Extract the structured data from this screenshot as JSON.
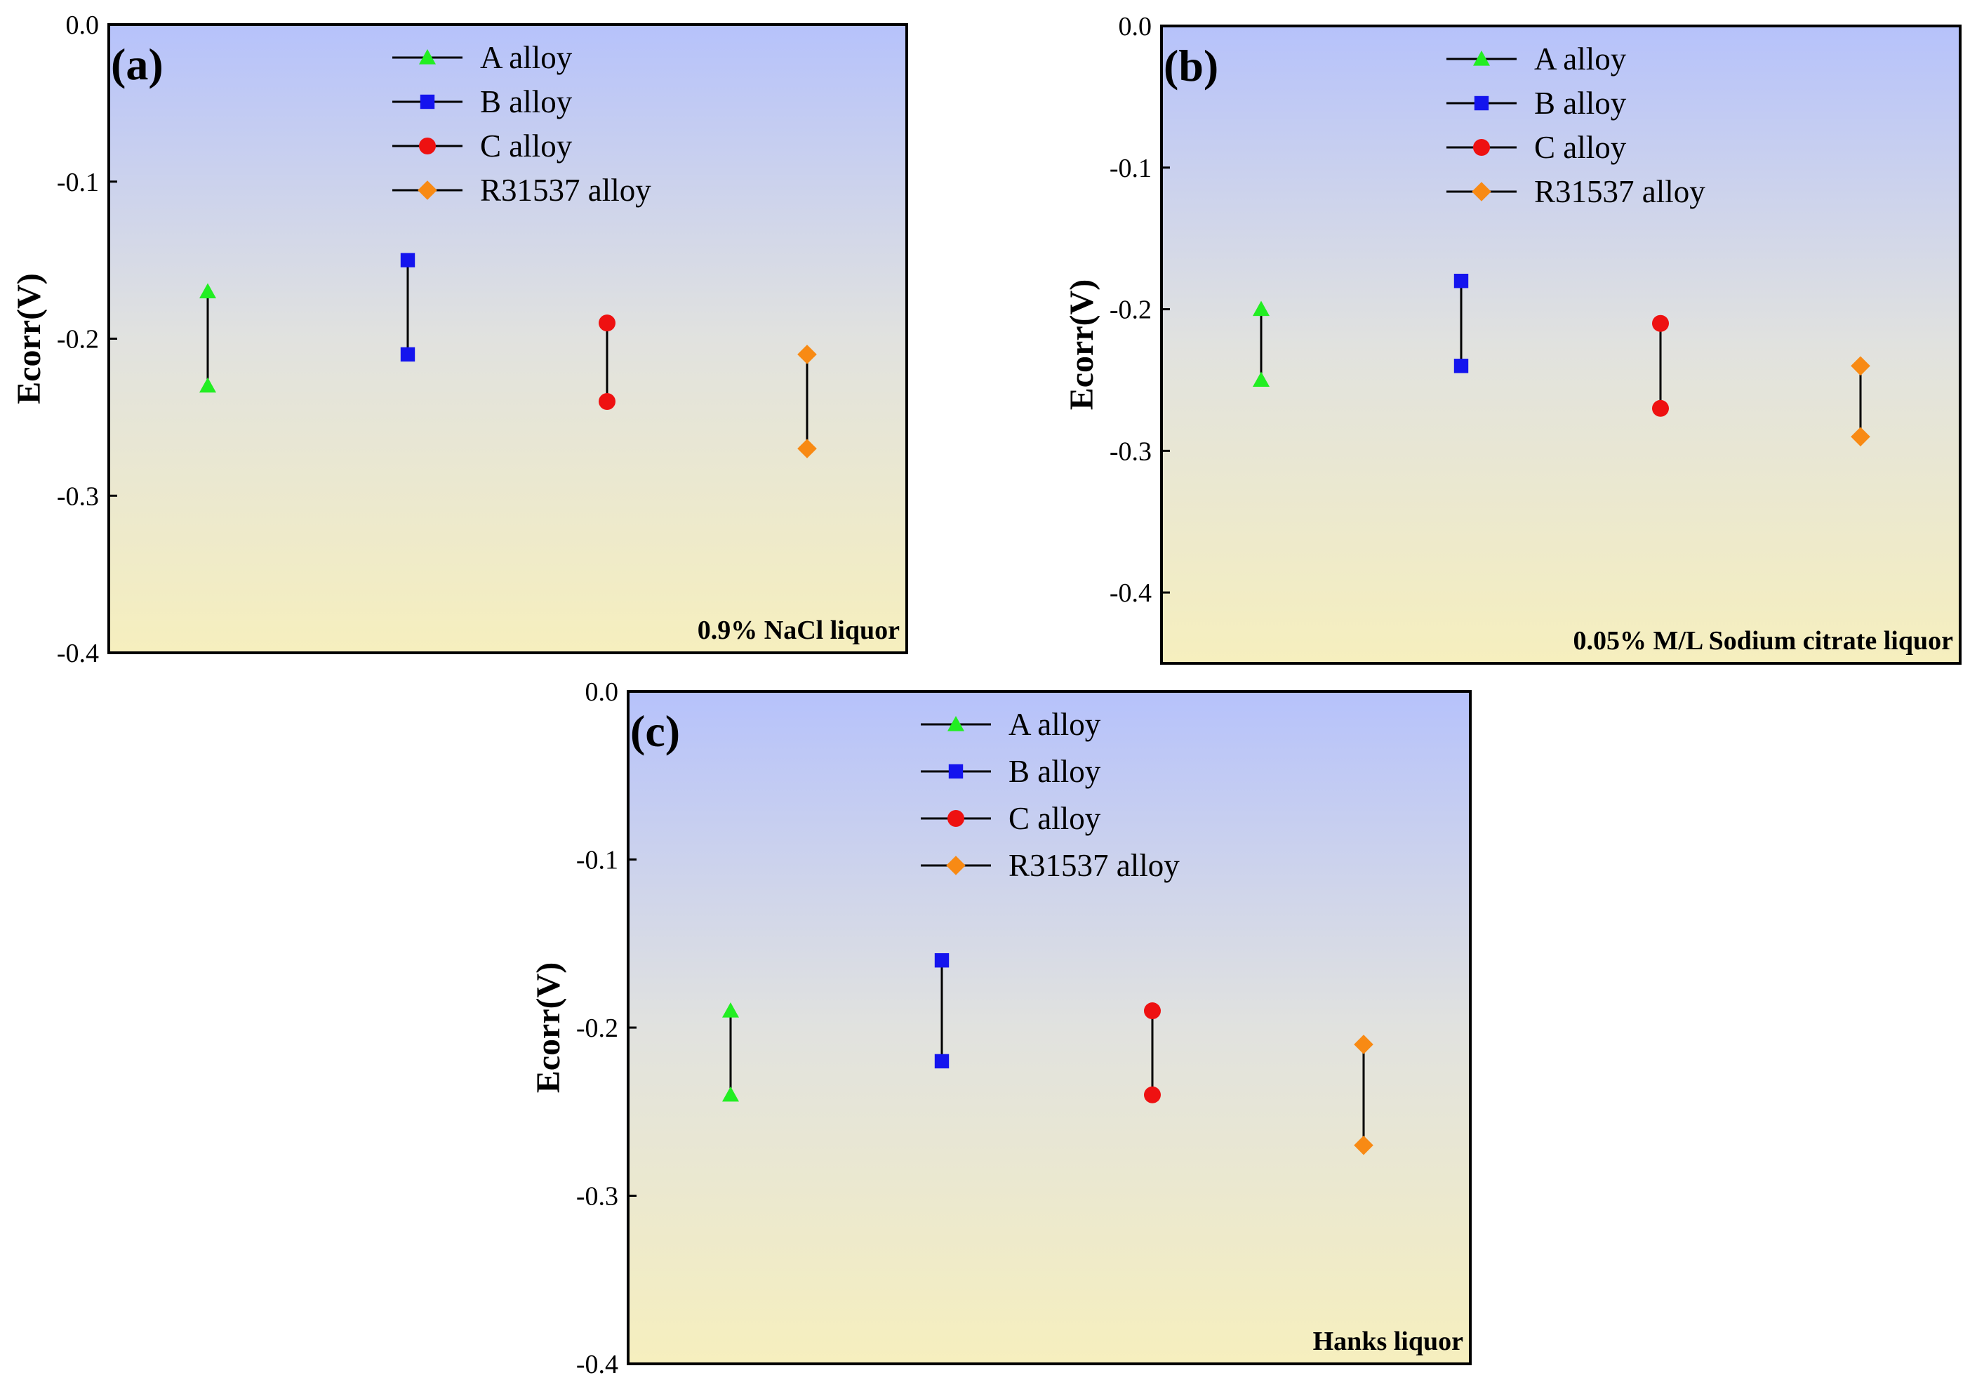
{
  "colors": {
    "bg_top": "#b6c2fb",
    "bg_mid": "#e1e2df",
    "bg_bottom": "#f6efbe",
    "A": "#22ee22",
    "B": "#1414ee",
    "C": "#ee1111",
    "R31537": "#f88a14",
    "frame": "#000000",
    "range_line": "#000000"
  },
  "chart_data": [
    {
      "type": "scatter",
      "panel_label": "(a)",
      "condition": "0.9% NaCl liquor",
      "ylabel": "Ecorr(V)",
      "xlabel": "",
      "ylim": [
        -0.4,
        0.0
      ],
      "yticks": [
        "0.0",
        "-0.1",
        "-0.2",
        "-0.3",
        "-0.4"
      ],
      "legend_position": "top-center",
      "series": [
        {
          "name": "A alloy",
          "key": "A",
          "marker": "triangle",
          "values": [
            -0.17,
            -0.23
          ]
        },
        {
          "name": "B alloy",
          "key": "B",
          "marker": "square",
          "values": [
            -0.15,
            -0.21
          ]
        },
        {
          "name": "C alloy",
          "key": "C",
          "marker": "circle",
          "values": [
            -0.19,
            -0.24
          ]
        },
        {
          "name": "R31537 alloy",
          "key": "R31537",
          "marker": "diamond",
          "values": [
            -0.21,
            -0.27
          ]
        }
      ]
    },
    {
      "type": "scatter",
      "panel_label": "(b)",
      "condition": "0.05% M/L Sodium citrate liquor",
      "ylabel": "Ecorr(V)",
      "xlabel": "",
      "ylim": [
        -0.45,
        0.0
      ],
      "yticks": [
        "0.0",
        "-0.1",
        "-0.2",
        "-0.3",
        "-0.4"
      ],
      "legend_position": "top-center",
      "series": [
        {
          "name": "A alloy",
          "key": "A",
          "marker": "triangle",
          "values": [
            -0.2,
            -0.25
          ]
        },
        {
          "name": "B alloy",
          "key": "B",
          "marker": "square",
          "values": [
            -0.18,
            -0.24
          ]
        },
        {
          "name": "C alloy",
          "key": "C",
          "marker": "circle",
          "values": [
            -0.21,
            -0.27
          ]
        },
        {
          "name": "R31537 alloy",
          "key": "R31537",
          "marker": "diamond",
          "values": [
            -0.24,
            -0.29
          ]
        }
      ]
    },
    {
      "type": "scatter",
      "panel_label": "(c)",
      "condition": "Hanks liquor",
      "ylabel": "Ecorr(V)",
      "xlabel": "",
      "ylim": [
        -0.4,
        0.0
      ],
      "yticks": [
        "0.0",
        "-0.1",
        "-0.2",
        "-0.3",
        "-0.4"
      ],
      "legend_position": "top-center",
      "series": [
        {
          "name": "A alloy",
          "key": "A",
          "marker": "triangle",
          "values": [
            -0.19,
            -0.24
          ]
        },
        {
          "name": "B alloy",
          "key": "B",
          "marker": "square",
          "values": [
            -0.16,
            -0.22
          ]
        },
        {
          "name": "C alloy",
          "key": "C",
          "marker": "circle",
          "values": [
            -0.19,
            -0.24
          ]
        },
        {
          "name": "R31537 alloy",
          "key": "R31537",
          "marker": "diamond",
          "values": [
            -0.21,
            -0.27
          ]
        }
      ]
    }
  ]
}
